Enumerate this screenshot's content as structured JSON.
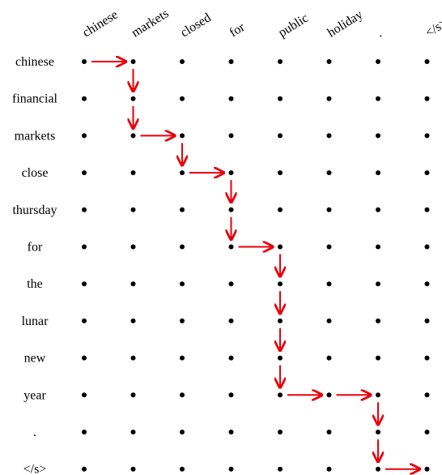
{
  "columns": [
    "chinese",
    "markets",
    "closed",
    "for",
    "public",
    "holiday",
    ".",
    "</s>"
  ],
  "rows": [
    "chinese",
    "financial",
    "markets",
    "close",
    "thursday",
    "for",
    "the",
    "lunar",
    "new",
    "year",
    ".",
    "</s>"
  ],
  "path": [
    [
      0,
      0
    ],
    [
      0,
      1
    ],
    [
      1,
      1
    ],
    [
      2,
      1
    ],
    [
      2,
      2
    ],
    [
      3,
      2
    ],
    [
      3,
      3
    ],
    [
      4,
      3
    ],
    [
      5,
      3
    ],
    [
      5,
      4
    ],
    [
      6,
      4
    ],
    [
      7,
      4
    ],
    [
      8,
      4
    ],
    [
      9,
      4
    ],
    [
      9,
      5
    ],
    [
      9,
      6
    ],
    [
      10,
      6
    ],
    [
      11,
      6
    ],
    [
      11,
      7
    ]
  ],
  "colors": {
    "arrow": "#e8000b",
    "dot": "#000000"
  }
}
